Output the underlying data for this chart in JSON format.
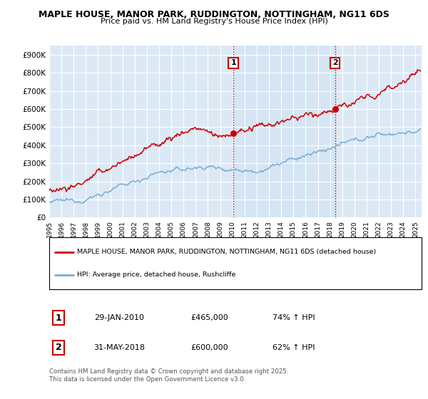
{
  "title_line1": "MAPLE HOUSE, MANOR PARK, RUDDINGTON, NOTTINGHAM, NG11 6DS",
  "title_line2": "Price paid vs. HM Land Registry's House Price Index (HPI)",
  "ylim": [
    0,
    950000
  ],
  "xlim_start": 1995.0,
  "xlim_end": 2025.5,
  "plot_bg_color": "#dce9f5",
  "grid_color": "#ffffff",
  "hpi_color": "#7aadd4",
  "price_color": "#cc0000",
  "vline_color": "#cc0000",
  "sale1_date": 2010.08,
  "sale1_price": 465000,
  "sale1_label": "1",
  "sale2_date": 2018.42,
  "sale2_price": 600000,
  "sale2_label": "2",
  "yticks": [
    0,
    100000,
    200000,
    300000,
    400000,
    500000,
    600000,
    700000,
    800000,
    900000
  ],
  "ytick_labels": [
    "£0",
    "£100K",
    "£200K",
    "£300K",
    "£400K",
    "£500K",
    "£600K",
    "£700K",
    "£800K",
    "£900K"
  ],
  "xticks": [
    1995,
    1996,
    1997,
    1998,
    1999,
    2000,
    2001,
    2002,
    2003,
    2004,
    2005,
    2006,
    2007,
    2008,
    2009,
    2010,
    2011,
    2012,
    2013,
    2014,
    2015,
    2016,
    2017,
    2018,
    2019,
    2020,
    2021,
    2022,
    2023,
    2024,
    2025
  ],
  "legend_line1": "MAPLE HOUSE, MANOR PARK, RUDDINGTON, NOTTINGHAM, NG11 6DS (detached house)",
  "legend_line2": "HPI: Average price, detached house, Rushcliffe",
  "footnote": "Contains HM Land Registry data © Crown copyright and database right 2025.\nThis data is licensed under the Open Government Licence v3.0.",
  "table_row1": [
    "1",
    "29-JAN-2010",
    "£465,000",
    "74% ↑ HPI"
  ],
  "table_row2": [
    "2",
    "31-MAY-2018",
    "£600,000",
    "62% ↑ HPI"
  ]
}
